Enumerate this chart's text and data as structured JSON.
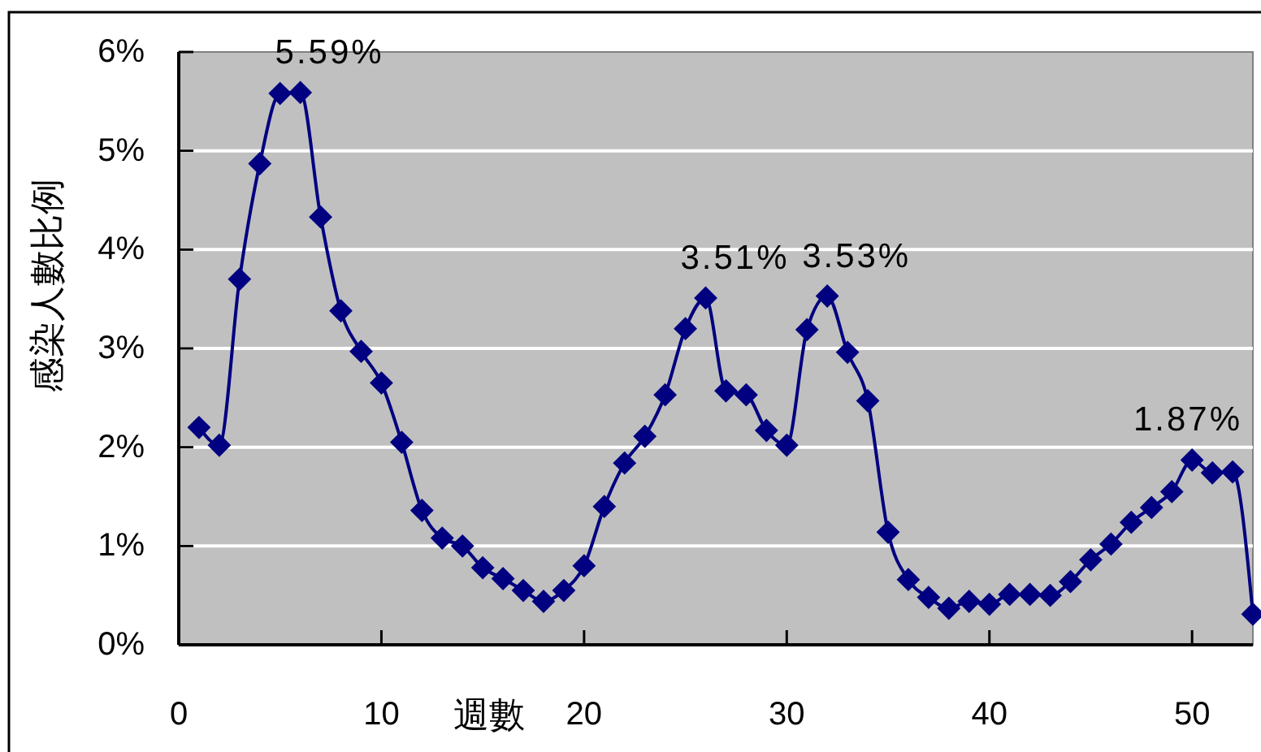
{
  "chart_data": {
    "type": "line",
    "xlabel": "週數",
    "ylabel": "感染人數比例",
    "x": [
      1,
      2,
      3,
      4,
      5,
      6,
      7,
      8,
      9,
      10,
      11,
      12,
      13,
      14,
      15,
      16,
      17,
      18,
      19,
      20,
      21,
      22,
      23,
      24,
      25,
      26,
      27,
      28,
      29,
      30,
      31,
      32,
      33,
      34,
      35,
      36,
      37,
      38,
      39,
      40,
      41,
      42,
      43,
      44,
      45,
      46,
      47,
      48,
      49,
      50,
      51,
      52,
      53
    ],
    "series": [
      {
        "color": "#000080",
        "values": [
          2.2,
          2.02,
          3.7,
          4.87,
          5.58,
          5.59,
          4.33,
          3.38,
          2.97,
          2.65,
          2.05,
          1.36,
          1.08,
          1.0,
          0.78,
          0.67,
          0.55,
          0.44,
          0.55,
          0.8,
          1.4,
          1.84,
          2.11,
          2.53,
          3.2,
          3.51,
          2.57,
          2.53,
          2.17,
          2.02,
          3.19,
          3.53,
          2.96,
          2.47,
          1.14,
          0.66,
          0.48,
          0.37,
          0.44,
          0.41,
          0.51,
          0.51,
          0.5,
          0.64,
          0.86,
          1.02,
          1.24,
          1.39,
          1.55,
          1.87,
          1.74,
          1.75,
          0.31
        ],
        "value_labels": [
          null,
          null,
          null,
          null,
          null,
          "5.59%",
          null,
          null,
          null,
          null,
          null,
          null,
          null,
          null,
          null,
          null,
          null,
          null,
          null,
          null,
          null,
          null,
          null,
          null,
          null,
          "3.51%",
          null,
          null,
          null,
          null,
          null,
          "3.53%",
          null,
          null,
          null,
          null,
          null,
          null,
          null,
          null,
          null,
          null,
          null,
          null,
          null,
          null,
          null,
          null,
          null,
          "1.87%",
          null,
          null,
          null
        ]
      }
    ],
    "xlim": [
      0,
      53
    ],
    "xticks": [
      0,
      10,
      20,
      30,
      40,
      50
    ],
    "ylim": [
      0,
      6
    ],
    "yticks": [
      {
        "value": 0,
        "label": "0%"
      },
      {
        "value": 1,
        "label": "1%"
      },
      {
        "value": 2,
        "label": "2%"
      },
      {
        "value": 3,
        "label": "3%"
      },
      {
        "value": 4,
        "label": "4%"
      },
      {
        "value": 5,
        "label": "5%"
      },
      {
        "value": 6,
        "label": "6%"
      }
    ],
    "grid": "y",
    "marker": "diamond",
    "line_style": "solid"
  }
}
